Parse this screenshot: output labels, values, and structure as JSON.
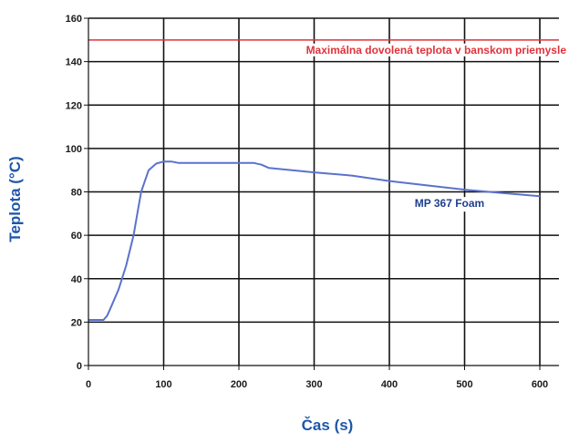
{
  "chart_data": {
    "type": "line",
    "title": "",
    "xlabel": "Čas (s)",
    "ylabel": "Teplota (°C)",
    "xlim": [
      0,
      620
    ],
    "ylim": [
      0,
      160
    ],
    "x_ticks": [
      0,
      100,
      200,
      300,
      400,
      500,
      600
    ],
    "y_ticks": [
      0,
      20,
      40,
      60,
      80,
      100,
      120,
      140,
      160
    ],
    "grid": true,
    "series": [
      {
        "name": "MP 367 Foam",
        "color": "#5b72cc",
        "x": [
          0,
          20,
          25,
          30,
          40,
          50,
          60,
          65,
          70,
          75,
          80,
          90,
          100,
          110,
          120,
          150,
          200,
          220,
          230,
          240,
          300,
          350,
          400,
          450,
          500,
          550,
          600
        ],
        "y": [
          21,
          21,
          23,
          27,
          35,
          46,
          60,
          70,
          80,
          85,
          90,
          93,
          94,
          94,
          93.3,
          93.3,
          93.3,
          93.3,
          92.5,
          91,
          89,
          87.5,
          85,
          83,
          81,
          79.5,
          78
        ]
      }
    ],
    "reference_lines": [
      {
        "y": 150,
        "color": "#e0323b",
        "label": "Maximálna dovolená teplota v banskom priemysle"
      }
    ],
    "annotations": [
      {
        "text": "MP 367 Foam",
        "color": "#1f3f8f"
      }
    ]
  }
}
